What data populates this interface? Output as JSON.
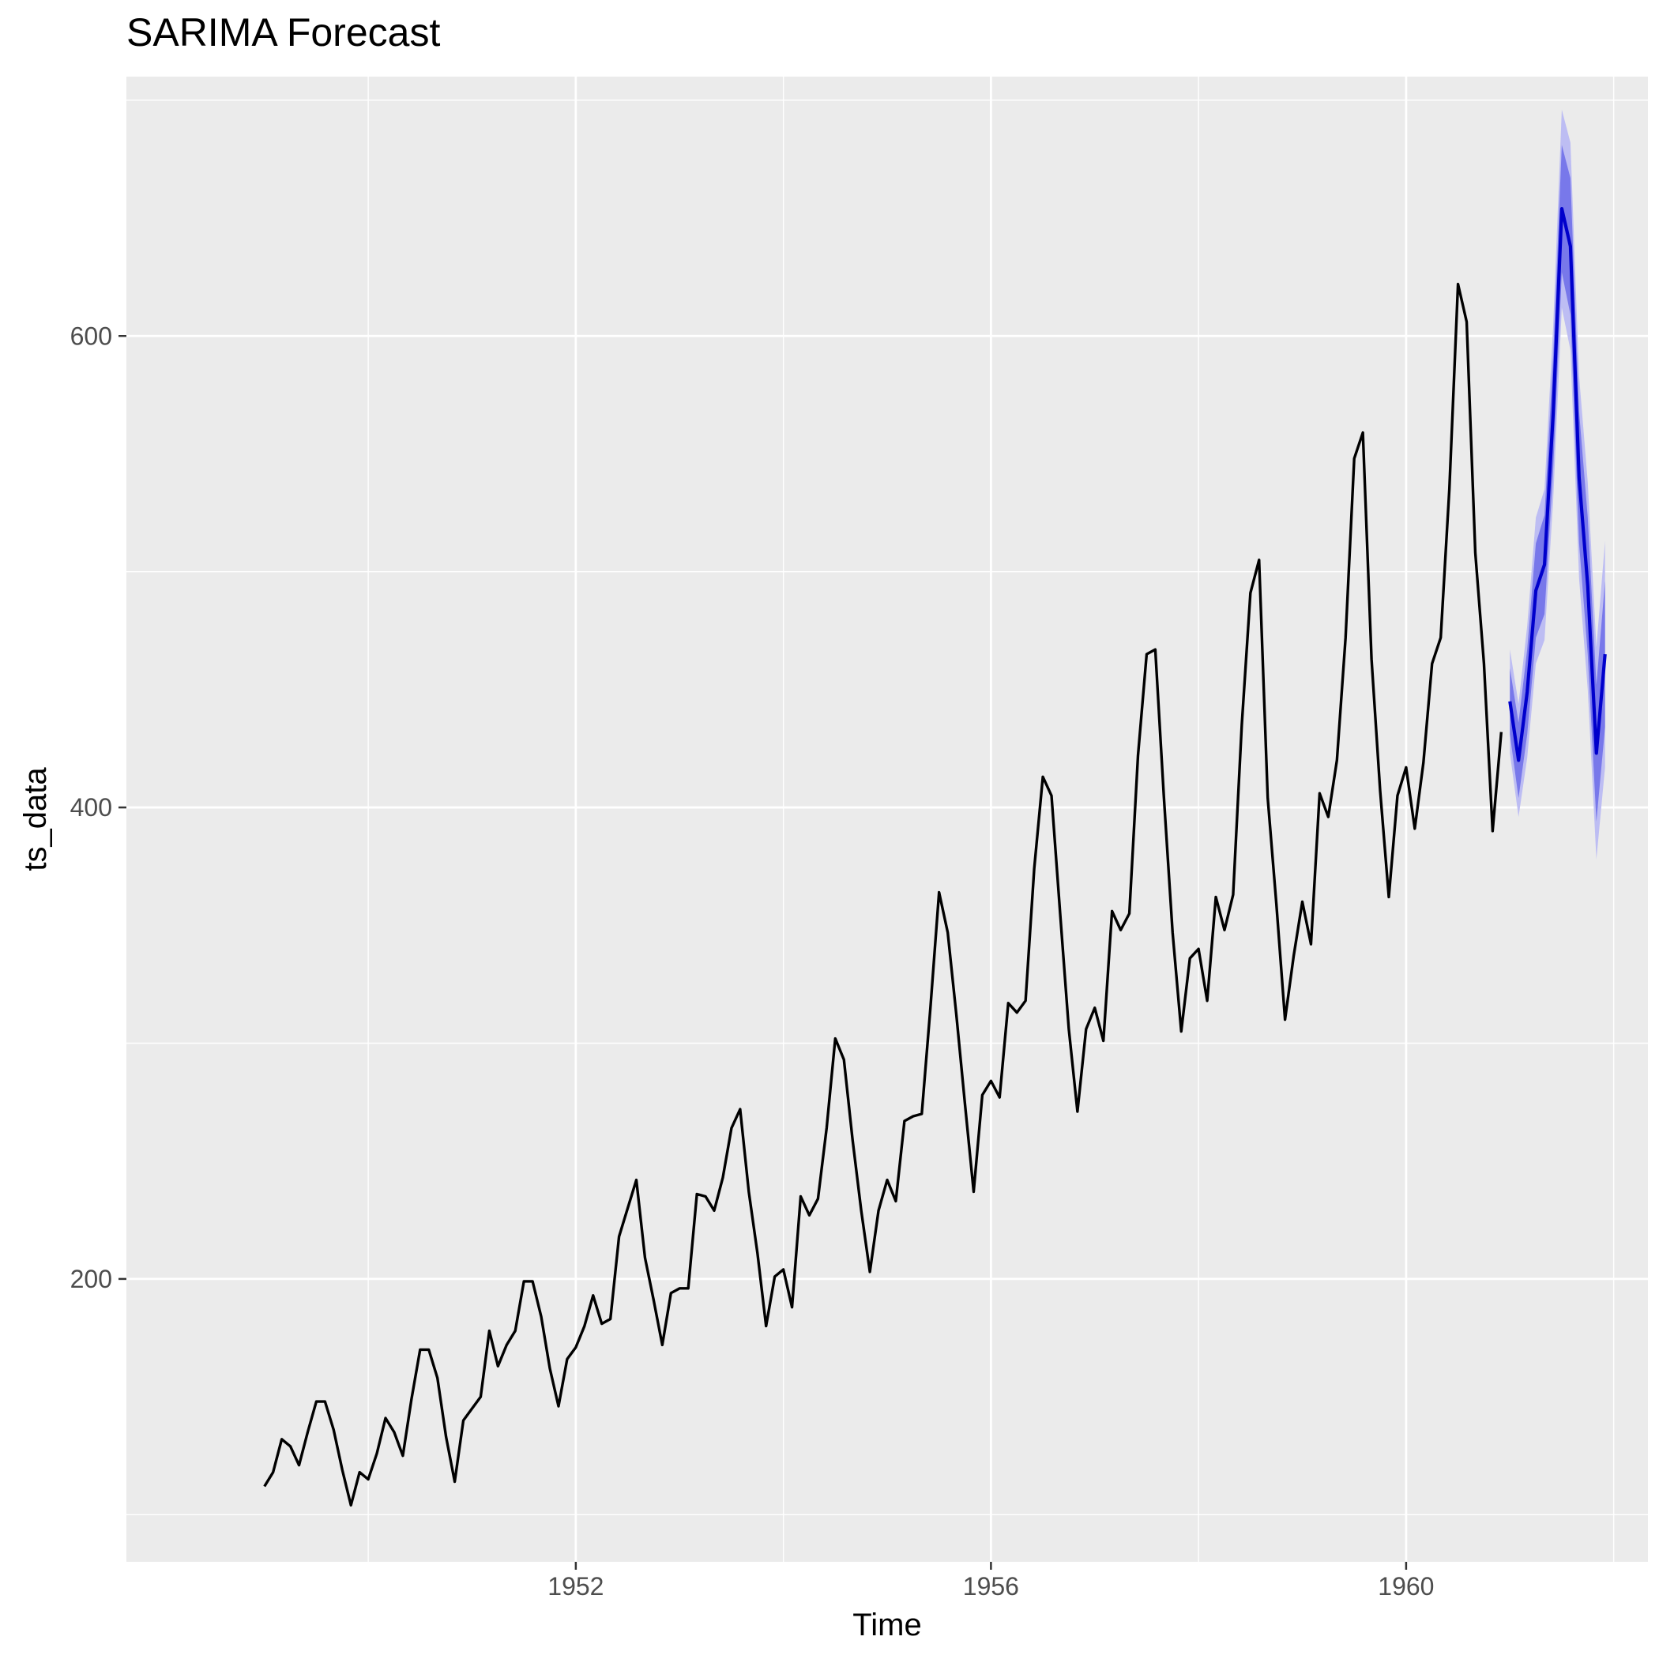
{
  "chart_data": {
    "type": "line",
    "title": "SARIMA Forecast",
    "xlabel": "Time",
    "ylabel": "ts_data",
    "x_ticks": [
      1952,
      1956,
      1960
    ],
    "y_ticks": [
      200,
      400,
      600
    ],
    "xlim": [
      1947.67,
      1962.33
    ],
    "ylim": [
      80,
      710
    ],
    "grid": true,
    "colors": {
      "panel_background": "#EBEBEB",
      "grid": "#FFFFFF",
      "observed": "#000000",
      "forecast": "#0000CC",
      "interval_80": "#7878EA",
      "interval_95": "#BDBDF3"
    },
    "series": [
      {
        "name": "ts_data",
        "role": "observed",
        "start": 1949,
        "frequency": 12,
        "values": [
          112,
          118,
          132,
          129,
          121,
          135,
          148,
          148,
          136,
          119,
          104,
          118,
          115,
          126,
          141,
          135,
          125,
          149,
          170,
          170,
          158,
          133,
          114,
          140,
          145,
          150,
          178,
          163,
          172,
          178,
          199,
          199,
          184,
          162,
          146,
          166,
          171,
          180,
          193,
          181,
          183,
          218,
          230,
          242,
          209,
          191,
          172,
          194,
          196,
          196,
          236,
          235,
          229,
          243,
          264,
          272,
          237,
          211,
          180,
          201,
          204,
          188,
          235,
          227,
          234,
          264,
          302,
          293,
          259,
          229,
          203,
          229,
          242,
          233,
          267,
          269,
          270,
          315,
          364,
          347,
          312,
          274,
          237,
          278,
          284,
          277,
          317,
          313,
          318,
          374,
          413,
          405,
          355,
          306,
          271,
          306,
          315,
          301,
          356,
          348,
          355,
          422,
          465,
          467,
          404,
          347,
          305,
          336,
          340,
          318,
          362,
          348,
          363,
          435,
          491,
          505,
          404,
          359,
          310,
          337,
          360,
          342,
          406,
          396,
          420,
          472,
          548,
          559,
          463,
          407,
          362,
          405,
          417,
          391,
          419,
          461,
          472,
          535,
          622,
          606,
          508,
          461,
          390,
          432
        ]
      },
      {
        "role": "forecast",
        "start": 1961,
        "frequency": 12,
        "values": [
          445,
          420,
          449,
          492,
          503,
          567,
          654,
          638,
          540,
          494,
          423,
          465
        ],
        "lo80": [
          431,
          404,
          431,
          472,
          482,
          543,
          627,
          609,
          512,
          465,
          394,
          434
        ],
        "hi80": [
          459,
          436,
          467,
          512,
          524,
          591,
          681,
          667,
          568,
          523,
          452,
          496
        ],
        "lo95": [
          423,
          396,
          421,
          461,
          471,
          530,
          612,
          594,
          497,
          450,
          378,
          417
        ],
        "hi95": [
          467,
          444,
          477,
          523,
          535,
          604,
          696,
          682,
          583,
          538,
          468,
          513
        ]
      }
    ]
  }
}
